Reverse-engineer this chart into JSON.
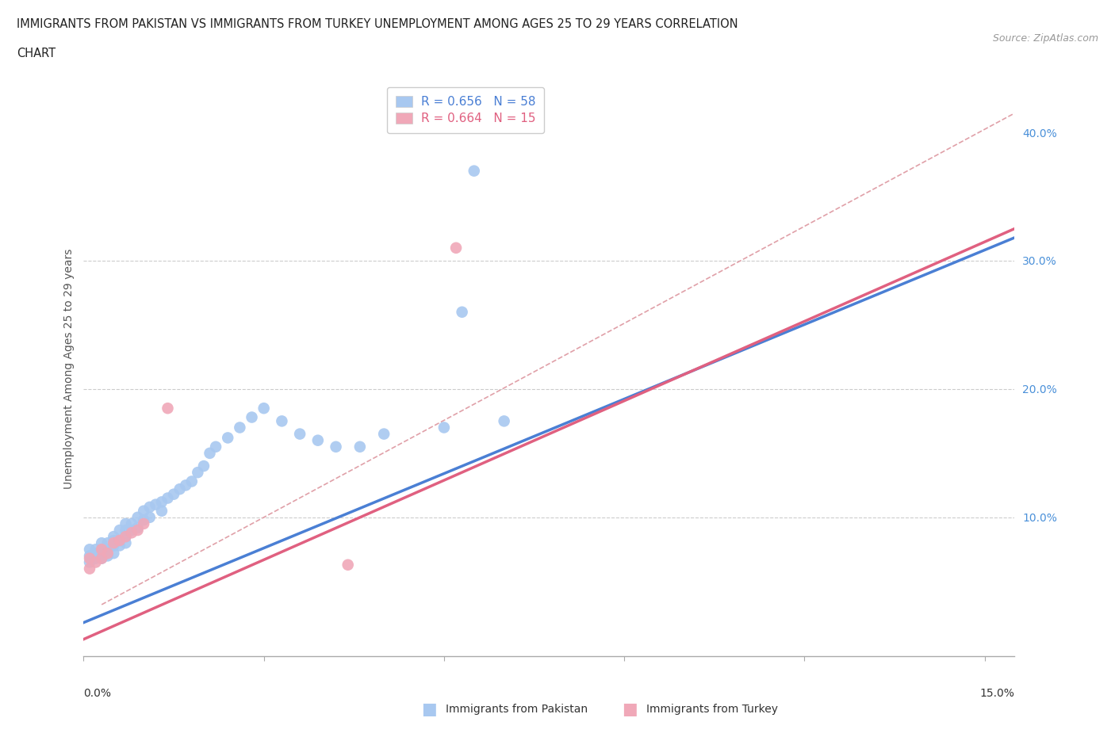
{
  "title_line1": "IMMIGRANTS FROM PAKISTAN VS IMMIGRANTS FROM TURKEY UNEMPLOYMENT AMONG AGES 25 TO 29 YEARS CORRELATION",
  "title_line2": "CHART",
  "source": "Source: ZipAtlas.com",
  "ylabel": "Unemployment Among Ages 25 to 29 years",
  "legend_r1": "R = 0.656   N = 58",
  "legend_r2": "R = 0.664   N = 15",
  "color_pakistan": "#a8c8f0",
  "color_turkey": "#f0a8b8",
  "color_pakistan_line": "#4a7fd4",
  "color_turkey_line": "#e06080",
  "color_diag_line": "#d0b0b0",
  "xmin": 0.0,
  "xmax": 0.155,
  "ymin": -0.008,
  "ymax": 0.44,
  "pakistan_line_x": [
    0.0,
    0.155
  ],
  "pakistan_line_y": [
    0.018,
    0.318
  ],
  "turkey_line_x": [
    0.0,
    0.155
  ],
  "turkey_line_y": [
    0.005,
    0.325
  ],
  "diag_line_x": [
    0.003,
    0.155
  ],
  "diag_line_y": [
    0.032,
    0.415
  ],
  "pakistan_x": [
    0.001,
    0.001,
    0.001,
    0.002,
    0.002,
    0.002,
    0.003,
    0.003,
    0.003,
    0.003,
    0.004,
    0.004,
    0.004,
    0.005,
    0.005,
    0.005,
    0.005,
    0.006,
    0.006,
    0.006,
    0.007,
    0.007,
    0.007,
    0.007,
    0.008,
    0.008,
    0.009,
    0.009,
    0.01,
    0.01,
    0.011,
    0.011,
    0.012,
    0.013,
    0.013,
    0.014,
    0.015,
    0.016,
    0.017,
    0.018,
    0.019,
    0.02,
    0.021,
    0.022,
    0.024,
    0.026,
    0.028,
    0.03,
    0.033,
    0.036,
    0.039,
    0.042,
    0.046,
    0.05,
    0.06,
    0.063,
    0.065,
    0.07
  ],
  "pakistan_y": [
    0.065,
    0.07,
    0.075,
    0.068,
    0.072,
    0.075,
    0.068,
    0.07,
    0.075,
    0.08,
    0.07,
    0.075,
    0.08,
    0.072,
    0.078,
    0.082,
    0.085,
    0.078,
    0.082,
    0.09,
    0.08,
    0.085,
    0.09,
    0.095,
    0.09,
    0.095,
    0.092,
    0.1,
    0.098,
    0.105,
    0.1,
    0.108,
    0.11,
    0.112,
    0.105,
    0.115,
    0.118,
    0.122,
    0.125,
    0.128,
    0.135,
    0.14,
    0.15,
    0.155,
    0.162,
    0.17,
    0.178,
    0.185,
    0.175,
    0.165,
    0.16,
    0.155,
    0.155,
    0.165,
    0.17,
    0.26,
    0.37,
    0.175
  ],
  "turkey_x": [
    0.001,
    0.001,
    0.002,
    0.003,
    0.003,
    0.004,
    0.005,
    0.006,
    0.007,
    0.008,
    0.009,
    0.01,
    0.014,
    0.044,
    0.062
  ],
  "turkey_y": [
    0.06,
    0.068,
    0.065,
    0.068,
    0.075,
    0.072,
    0.08,
    0.082,
    0.085,
    0.088,
    0.09,
    0.095,
    0.185,
    0.063,
    0.31
  ]
}
